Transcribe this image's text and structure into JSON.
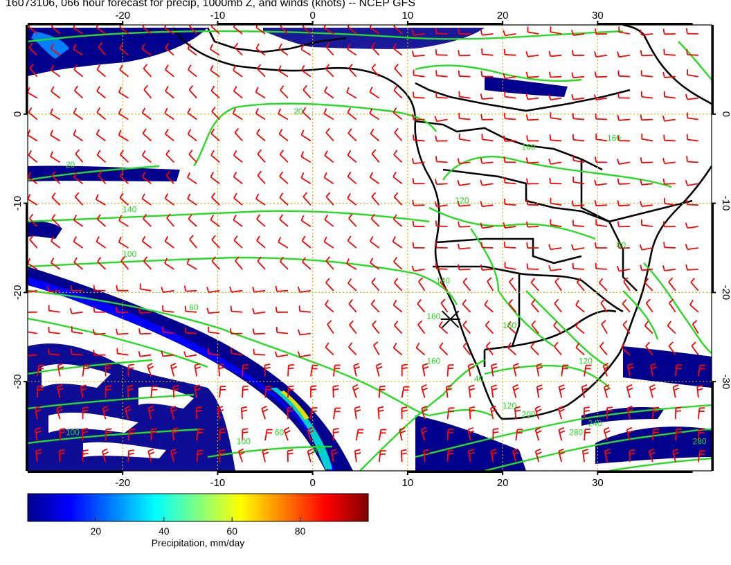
{
  "title": "16073106, 066 hour forecast for precip, 1000mb Z, and winds (knots) -- NCEP GFS",
  "map": {
    "lon_min": -30,
    "lon_max": 42,
    "lat_min": -40,
    "lat_max": 10,
    "lon_ticks": [
      -20,
      -10,
      0,
      10,
      20,
      30
    ],
    "lat_ticks": [
      0,
      -10,
      -20,
      -30
    ],
    "lon_tick_labels": [
      "-20",
      "-10",
      "0",
      "10",
      "20",
      "30"
    ],
    "lat_tick_labels": [
      "0",
      "-10",
      "-20",
      "-30"
    ],
    "grid": "dotted",
    "grid_color": "#d4b400",
    "wind_barb_color": "#ff0000",
    "contour_color": "#22dd22",
    "coast_color": "#000000",
    "station_marker": {
      "lon": 14.5,
      "lat": -23,
      "symbol": "x"
    },
    "contour_labels": [
      "20",
      "20",
      "140",
      "100",
      "60",
      "140",
      "160",
      "40",
      "60",
      "160",
      "120",
      "160",
      "200",
      "240",
      "280",
      "280",
      "100",
      "80",
      "100",
      "120",
      "120",
      "160",
      "160",
      "80"
    ]
  },
  "colorbar": {
    "label": "Precipitation, mm/day",
    "ticks": [
      "20",
      "40",
      "60",
      "80"
    ],
    "tick_values": [
      20,
      40,
      60,
      80
    ],
    "min": 0,
    "max": 100,
    "colors": [
      "#00008f",
      "#0000ff",
      "#0080ff",
      "#00ffff",
      "#80ff80",
      "#ffff00",
      "#ff8000",
      "#ff0000",
      "#800000"
    ]
  }
}
